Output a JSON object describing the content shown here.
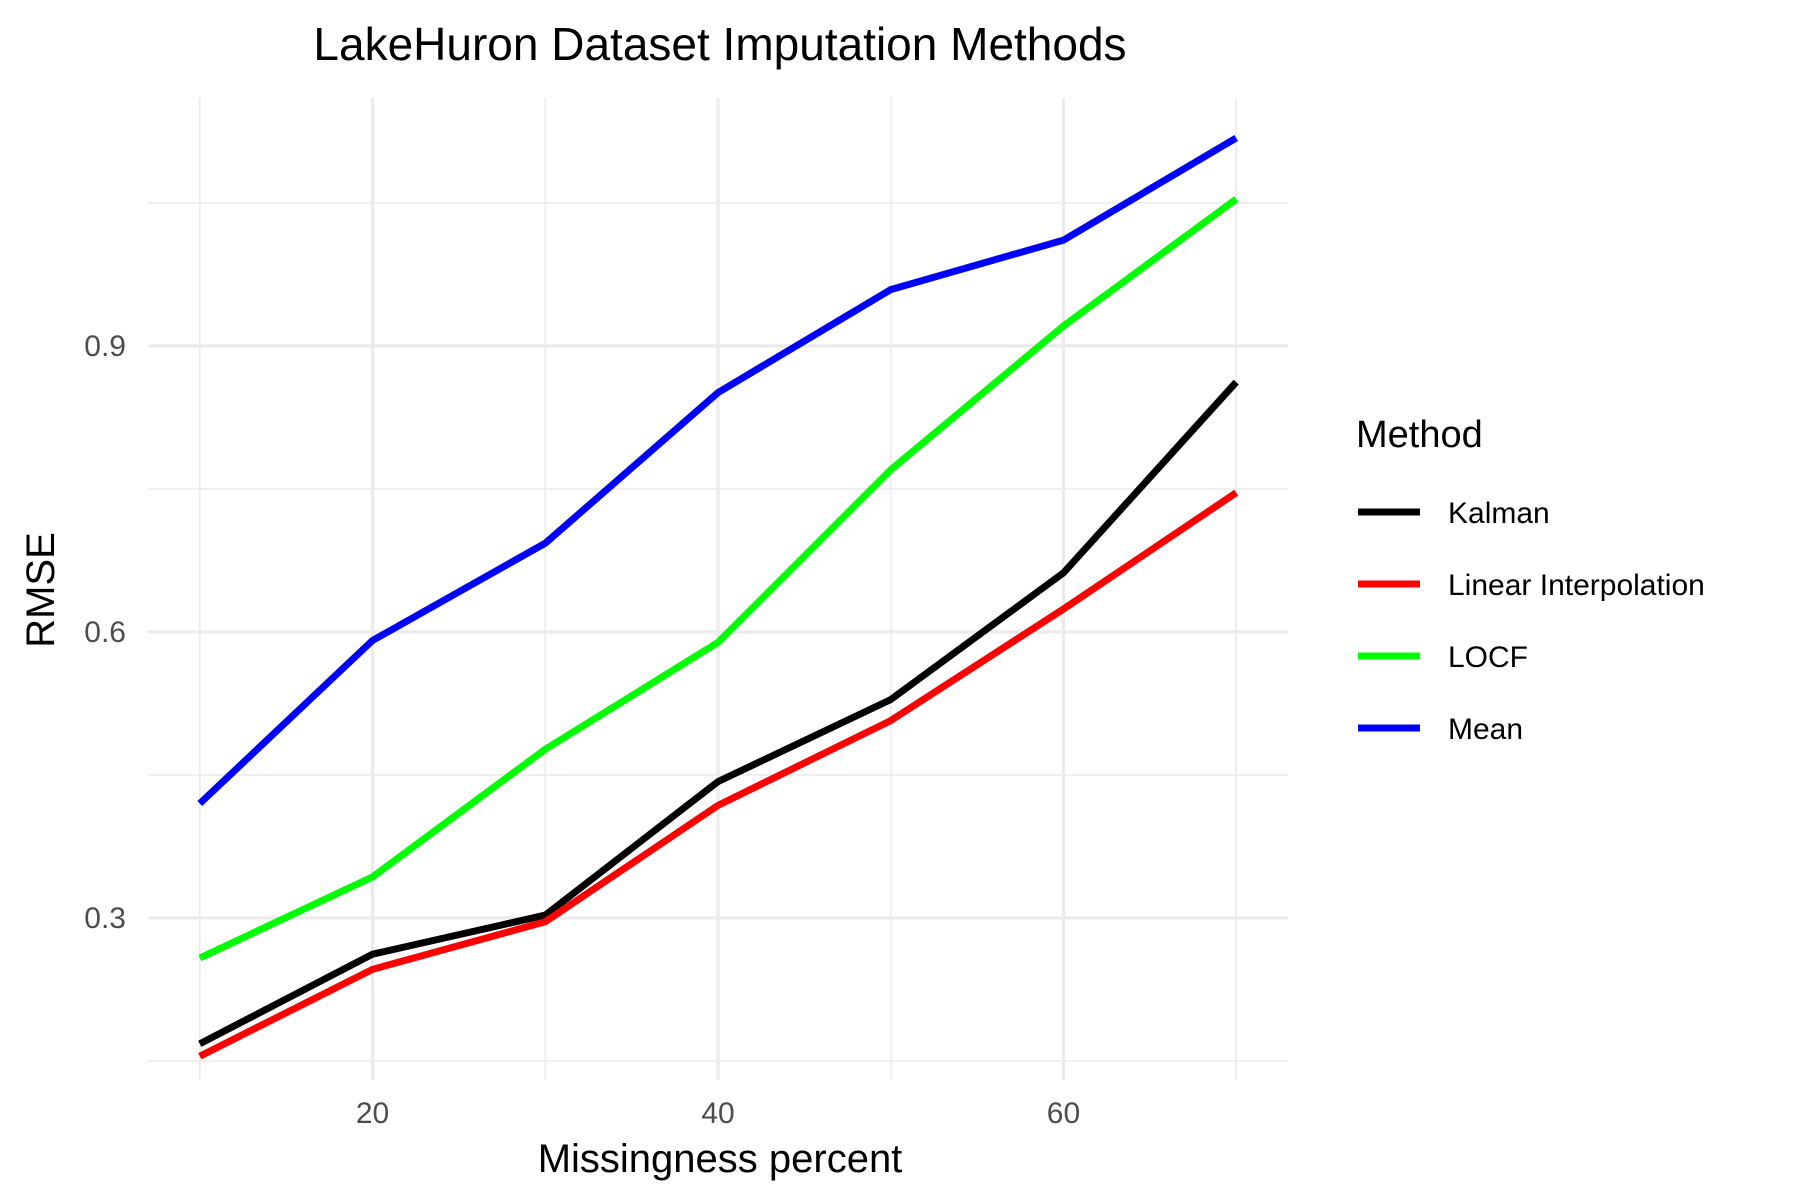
{
  "chart_data": {
    "type": "line",
    "title": "LakeHuron Dataset Imputation Methods",
    "xlabel": "Missingness percent",
    "ylabel": "RMSE",
    "x": [
      10,
      20,
      30,
      40,
      50,
      60,
      70
    ],
    "xlim": [
      7,
      73
    ],
    "ylim": [
      0.13,
      1.16
    ],
    "x_ticks": [
      20,
      40,
      60
    ],
    "y_ticks": [
      0.3,
      0.6,
      0.9
    ],
    "x_tick_labels": [
      "20",
      "40",
      "60"
    ],
    "y_tick_labels": [
      "0.3",
      "0.6",
      "0.9"
    ],
    "grid": true,
    "legend_title": "Method",
    "legend_position": "right",
    "series": [
      {
        "name": "Kalman",
        "color": "#000000",
        "values": [
          0.168,
          0.262,
          0.303,
          0.443,
          0.529,
          0.662,
          0.862
        ]
      },
      {
        "name": "Linear Interpolation",
        "color": "#ff0000",
        "values": [
          0.155,
          0.246,
          0.296,
          0.418,
          0.507,
          0.624,
          0.746
        ]
      },
      {
        "name": "LOCF",
        "color": "#00ff00",
        "values": [
          0.258,
          0.343,
          0.477,
          0.589,
          0.77,
          0.921,
          1.054
        ]
      },
      {
        "name": "Mean",
        "color": "#0000ff",
        "values": [
          0.42,
          0.591,
          0.693,
          0.851,
          0.959,
          1.011,
          1.118
        ]
      }
    ]
  }
}
